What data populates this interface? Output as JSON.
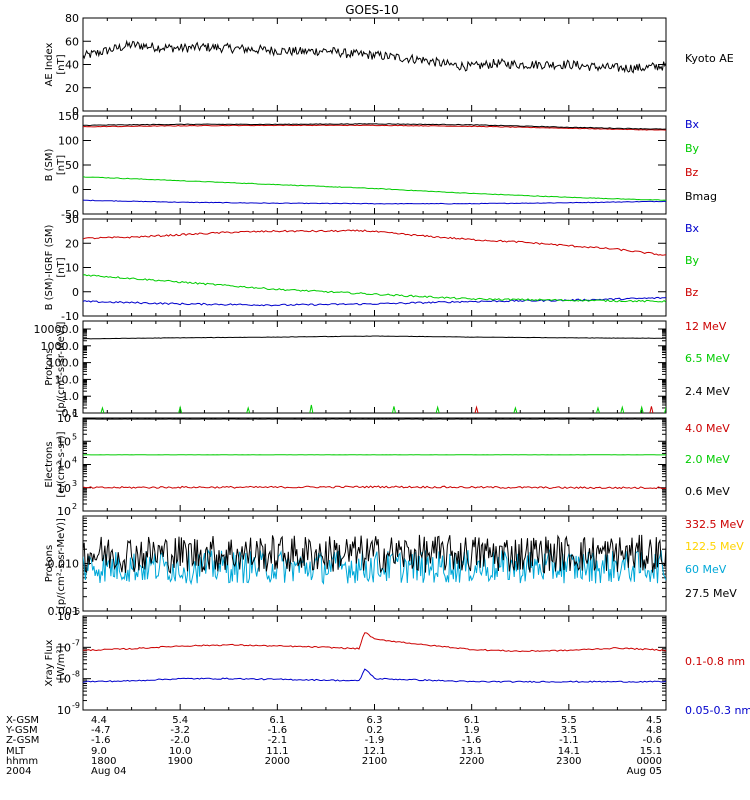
{
  "title": "GOES-10",
  "colors": {
    "black": "#000000",
    "red": "#cc0000",
    "green": "#00cc00",
    "blue": "#0000cc",
    "yellow": "#ffd400",
    "cyan": "#00a8d8"
  },
  "chart_data": [
    {
      "type": "line",
      "id": "ae",
      "ylabel": [
        "AE Index",
        "[nT]"
      ],
      "yscale": "linear",
      "ylim": [
        0,
        80
      ],
      "ticks": [
        0,
        20,
        40,
        60,
        80
      ],
      "tick_labels": [
        "0",
        "20",
        "40",
        "60",
        "80"
      ],
      "series": [
        {
          "name": "Kyoto AE",
          "color": "#000000",
          "style": "noisy",
          "x": [
            0,
            0.25,
            0.5,
            0.75,
            1.0,
            1.25,
            1.5,
            1.75,
            2.0,
            2.25,
            2.5,
            2.75,
            3.0,
            3.25,
            3.5,
            3.75,
            4.0,
            4.25,
            4.5,
            4.75,
            5.0,
            5.25,
            5.5,
            5.75,
            6.0
          ],
          "y": [
            47,
            52,
            57,
            55,
            54,
            55,
            54,
            53,
            52,
            51,
            52,
            49,
            48,
            46,
            44,
            40,
            38,
            41,
            40,
            40,
            40,
            38,
            37,
            37,
            39
          ],
          "noise": 4
        }
      ]
    },
    {
      "type": "line",
      "id": "bsm",
      "ylabel": [
        "B (SM)",
        "[nT]"
      ],
      "yscale": "linear",
      "ylim": [
        -50,
        150
      ],
      "ticks": [
        -50,
        0,
        50,
        100,
        150
      ],
      "tick_labels": [
        "-50",
        "0",
        "50",
        "100",
        "150"
      ],
      "series": [
        {
          "name": "Bx",
          "color": "#0000cc",
          "x": [
            0,
            1,
            2,
            3,
            4,
            5,
            6
          ],
          "y": [
            -22,
            -26,
            -28,
            -29,
            -29,
            -27,
            -24
          ],
          "noise": 0.6
        },
        {
          "name": "By",
          "color": "#00cc00",
          "x": [
            0,
            1,
            2,
            3,
            4,
            5,
            6
          ],
          "y": [
            26,
            18,
            10,
            2,
            -8,
            -16,
            -22
          ],
          "noise": 0.6
        },
        {
          "name": "Bz",
          "color": "#cc0000",
          "x": [
            0,
            1,
            2,
            3,
            4,
            5,
            6
          ],
          "y": [
            128,
            130,
            131,
            131,
            129,
            125,
            121
          ],
          "noise": 0.6
        },
        {
          "name": "Bmag",
          "color": "#000000",
          "x": [
            0,
            1,
            2,
            3,
            4,
            5,
            6
          ],
          "y": [
            131,
            133,
            133,
            134,
            132,
            127,
            123
          ],
          "noise": 0.6
        }
      ]
    },
    {
      "type": "line",
      "id": "bigrf",
      "ylabel": [
        "B (SM)-IGRF (SM)",
        "[nT]"
      ],
      "yscale": "linear",
      "ylim": [
        -10,
        30
      ],
      "ticks": [
        -10,
        0,
        10,
        20,
        30
      ],
      "tick_labels": [
        "-10",
        "0",
        "10",
        "20",
        "30"
      ],
      "series": [
        {
          "name": "Bx",
          "color": "#0000cc",
          "x": [
            0,
            1,
            2,
            3,
            4,
            5,
            6
          ],
          "y": [
            -4,
            -5,
            -5.5,
            -5,
            -4,
            -3.5,
            -2.5
          ],
          "noise": 0.35
        },
        {
          "name": "By",
          "color": "#00cc00",
          "x": [
            0,
            1,
            2,
            3,
            4,
            5,
            6
          ],
          "y": [
            7,
            4,
            1,
            -1,
            -3,
            -3.5,
            -4
          ],
          "noise": 0.35
        },
        {
          "name": "Bz",
          "color": "#cc0000",
          "x": [
            0,
            0.5,
            1,
            1.5,
            2,
            2.5,
            2.9,
            3,
            3.5,
            4,
            4.5,
            5,
            5.5,
            6
          ],
          "y": [
            22,
            22.5,
            23.5,
            24.5,
            25,
            25,
            25.2,
            24.8,
            23,
            21.5,
            20.5,
            19,
            17.5,
            15
          ],
          "noise": 0.35
        }
      ]
    },
    {
      "type": "line",
      "id": "protons_low",
      "ylabel": [
        "Protons",
        "[p/(cm²-s-sr-MeV)]"
      ],
      "yscale": "log",
      "ylim": [
        0.1,
        30000
      ],
      "ticks": [
        0.1,
        1,
        10,
        100,
        1000,
        10000
      ],
      "tick_labels": [
        "0.1",
        "1.0",
        "10.0",
        "100.0",
        "1000.0",
        "10000.0"
      ],
      "series": [
        {
          "name": "12 MeV",
          "color": "#cc0000",
          "style": "sparse",
          "x": [
            4.05,
            5.85
          ],
          "y": [
            0.22,
            0.25
          ]
        },
        {
          "name": "6.5 MeV",
          "color": "#00cc00",
          "style": "sparse",
          "x": [
            0.2,
            1.0,
            1.7,
            2.35,
            3.2,
            3.65,
            4.45,
            5.3,
            5.55,
            5.75,
            6.0
          ],
          "y": [
            0.2,
            0.22,
            0.2,
            0.3,
            0.25,
            0.22,
            0.2,
            0.2,
            0.22,
            0.22,
            0.2
          ]
        },
        {
          "name": "2.4 MeV",
          "color": "#000000",
          "x": [
            0,
            1,
            2,
            3,
            4,
            5,
            6
          ],
          "y": [
            2600,
            3000,
            3300,
            3800,
            3300,
            3000,
            2800
          ],
          "noise": 0.01
        }
      ]
    },
    {
      "type": "line",
      "id": "electrons",
      "ylabel": [
        "Electrons",
        "[e/(cm²-s-sr)]"
      ],
      "yscale": "log",
      "ylim": [
        100,
        1000000
      ],
      "ticks": [
        100,
        1000,
        10000,
        100000,
        1000000
      ],
      "tick_exponents": [
        "2",
        "3",
        "4",
        "5",
        "6"
      ],
      "series": [
        {
          "name": "4.0 MeV",
          "color": "#cc0000",
          "x": [
            0,
            1,
            2,
            3,
            4,
            5,
            6
          ],
          "y": [
            1000,
            1050,
            1050,
            1100,
            1050,
            1000,
            1000
          ],
          "noise": 0.04
        },
        {
          "name": "2.0 MeV",
          "color": "#00cc00",
          "x": [
            0,
            6
          ],
          "y": [
            26000,
            26000
          ],
          "noise": 0.004
        },
        {
          "name": "0.6 MeV",
          "color": "#000000",
          "x": [
            0,
            6
          ],
          "y": [
            900000,
            900000
          ],
          "noise": 0.003
        }
      ]
    },
    {
      "type": "line",
      "id": "protons_high",
      "ylabel": [
        "Protons",
        "[p/(cm²-s-sr-MeV)]"
      ],
      "yscale": "log",
      "ylim": [
        0.001,
        0.1
      ],
      "ticks": [
        0.001,
        0.01,
        0.1
      ],
      "tick_labels": [
        "0.001",
        "0.010",
        ""
      ],
      "series": [
        {
          "name": "332.5 MeV",
          "color": "#cc0000",
          "x": [],
          "y": []
        },
        {
          "name": "122.5 MeV",
          "color": "#ffd400",
          "x": [],
          "y": []
        },
        {
          "name": "60 MeV",
          "color": "#00a8d8",
          "style": "noisy",
          "x": [
            0,
            6
          ],
          "y": [
            0.0085,
            0.0085
          ],
          "noise": 0.35
        },
        {
          "name": "27.5 MeV",
          "color": "#000000",
          "style": "noisy",
          "x": [
            0,
            6
          ],
          "y": [
            0.016,
            0.016
          ],
          "noise": 0.4
        }
      ]
    },
    {
      "type": "line",
      "id": "xray",
      "ylabel": [
        "Xray Flux",
        "[W/m²]"
      ],
      "yscale": "log",
      "ylim": [
        1e-09,
        1e-06
      ],
      "ticks": [
        1e-09,
        1e-08,
        1e-07,
        1e-06
      ],
      "tick_exponents": [
        "-9",
        "-8",
        "-7",
        "-6"
      ],
      "series": [
        {
          "name": "0.1-0.8 nm",
          "color": "#cc0000",
          "x": [
            0,
            0.5,
            1.0,
            1.5,
            2.0,
            2.5,
            2.85,
            2.9,
            3.0,
            3.5,
            4.0,
            4.5,
            5.0,
            5.5,
            6.0
          ],
          "y": [
            8e-08,
            9e-08,
            1.1e-07,
            1.2e-07,
            1.1e-07,
            1e-07,
            9e-08,
            3e-07,
            1.8e-07,
            1.2e-07,
            8.5e-08,
            7.5e-08,
            8e-08,
            9.5e-08,
            8e-08
          ],
          "noise": 0.02
        },
        {
          "name": "0.05-0.3 nm",
          "color": "#0000cc",
          "x": [
            0,
            0.5,
            1.0,
            1.5,
            2.0,
            2.5,
            2.85,
            2.9,
            3.0,
            3.5,
            4.0,
            4.5,
            5.0,
            5.5,
            6.0
          ],
          "y": [
            8e-09,
            8.5e-09,
            1e-08,
            1e-08,
            9.5e-09,
            9e-09,
            8.5e-09,
            2e-08,
            1e-08,
            9e-09,
            8e-09,
            8e-09,
            8e-09,
            8e-09,
            8e-09
          ],
          "noise": 0.02
        }
      ]
    }
  ],
  "footer": {
    "labels": [
      "X-GSM",
      "Y-GSM",
      "Z-GSM",
      "MLT",
      "hhmm",
      "2004"
    ],
    "columns": [
      {
        "values": [
          "4.4",
          "-4.7",
          "-1.6",
          "9.0",
          "1800",
          "Aug 04"
        ]
      },
      {
        "values": [
          "5.4",
          "-3.2",
          "-2.0",
          "10.0",
          "1900",
          ""
        ]
      },
      {
        "values": [
          "6.1",
          "-1.6",
          "-2.1",
          "11.1",
          "2000",
          ""
        ]
      },
      {
        "values": [
          "6.3",
          "0.2",
          "-1.9",
          "12.1",
          "2100",
          ""
        ]
      },
      {
        "values": [
          "6.1",
          "1.9",
          "-1.6",
          "13.1",
          "2200",
          ""
        ]
      },
      {
        "values": [
          "5.5",
          "3.5",
          "-1.1",
          "14.1",
          "2300",
          ""
        ]
      },
      {
        "values": [
          "4.5",
          "4.8",
          "-0.6",
          "15.1",
          "0000",
          "Aug 05"
        ]
      }
    ]
  }
}
